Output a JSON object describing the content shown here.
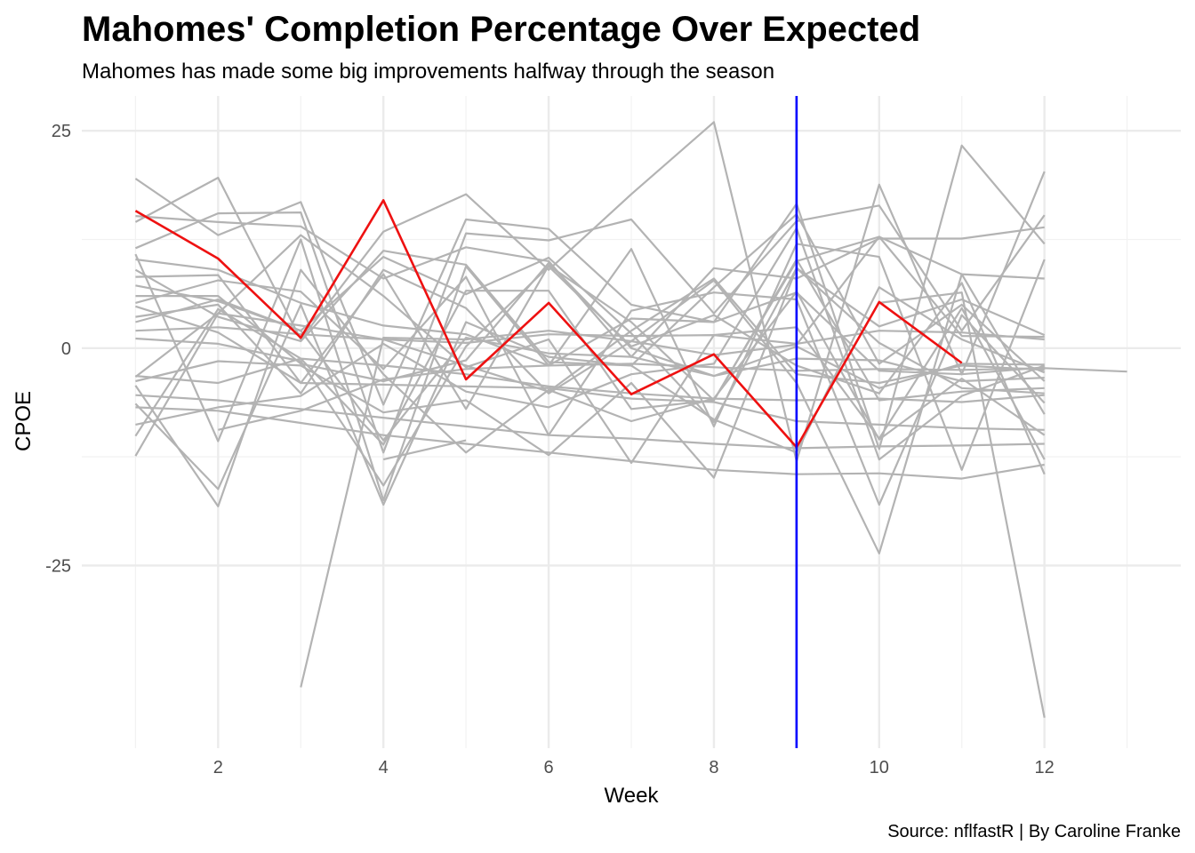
{
  "chart_data": {
    "type": "line",
    "title": "Mahomes' Completion Percentage Over Expected",
    "subtitle": "Mahomes has made some big improvements halfway through the season",
    "xlabel": "Week",
    "ylabel": "CPOE",
    "caption": "Source: nflfastR | By Caroline Franke",
    "xlim": [
      0.35,
      13.65
    ],
    "ylim": [
      -46,
      29
    ],
    "x_ticks": [
      2,
      4,
      6,
      8,
      10,
      12
    ],
    "x_tick_labels": [
      "2",
      "4",
      "6",
      "8",
      "10",
      "12"
    ],
    "y_ticks": [
      -25,
      0,
      25
    ],
    "y_tick_labels": [
      "-25",
      "0",
      "25"
    ],
    "grid": true,
    "colors": {
      "background_series": "#b3b3b3",
      "highlight": "#ee1111",
      "reference_line": "#0000ff",
      "grid": "#ebebeb"
    },
    "reference_line": {
      "x": 9
    },
    "highlight": {
      "x": [
        1,
        2,
        3,
        4,
        5,
        6,
        7,
        8,
        9,
        10,
        11
      ],
      "values": [
        15.8,
        10.3,
        1.2,
        17.0,
        -3.6,
        5.2,
        -5.3,
        -0.7,
        -11.4,
        5.3,
        -1.7
      ]
    },
    "series": [
      {
        "x": [
          1,
          2,
          3,
          4,
          5,
          6,
          7,
          8,
          9,
          10,
          11,
          12
        ],
        "values": [
          19.5,
          13.0,
          16.8,
          -6.5,
          14.8,
          13.7,
          5.0,
          3.0,
          16.6,
          -11.6,
          23.3,
          12.0
        ]
      },
      {
        "x": [
          1,
          2,
          3,
          4,
          5,
          6,
          7,
          8,
          9,
          10,
          11,
          12
        ],
        "values": [
          14.5,
          19.6,
          1.0,
          13.4,
          17.7,
          9.0,
          17.7,
          26.0,
          -13.0,
          18.8,
          -3.0,
          20.3
        ]
      },
      {
        "x": [
          1,
          2,
          3,
          4,
          5,
          6,
          7,
          8,
          9,
          10,
          11,
          12
        ],
        "values": [
          11.5,
          15.5,
          15.6,
          -12.0,
          13.2,
          12.4,
          14.8,
          4.0,
          14.6,
          16.4,
          2.0,
          15.3
        ]
      },
      {
        "x": [
          1,
          2,
          3,
          4,
          5,
          6,
          7,
          8,
          9,
          10,
          11,
          12
        ],
        "values": [
          15.2,
          14.5,
          14.0,
          8.0,
          11.6,
          10.0,
          -1.0,
          9.2,
          8.0,
          12.6,
          12.6,
          13.9
        ]
      },
      {
        "x": [
          1,
          2,
          3,
          4,
          5,
          6,
          7,
          8,
          9,
          10,
          11,
          12
        ],
        "values": [
          10.8,
          -10.7,
          12.5,
          -17.5,
          9.4,
          -2.0,
          11.4,
          -9.0,
          12.0,
          10.5,
          -14.0,
          10.2
        ]
      },
      {
        "x": [
          1,
          2,
          3,
          4,
          5,
          6,
          7,
          8,
          9,
          10,
          11,
          12
        ],
        "values": [
          8.2,
          8.4,
          -4.0,
          8.5,
          -7.0,
          9.5,
          3.0,
          -6.0,
          10.0,
          12.8,
          8.5,
          8.0
        ]
      },
      {
        "x": [
          1,
          2,
          3,
          4,
          5,
          6,
          7,
          8,
          9,
          10,
          11,
          12
        ],
        "values": [
          7.2,
          5.4,
          2.0,
          10.5,
          6.2,
          10.4,
          1.7,
          -8.5,
          9.2,
          2.5,
          5.6,
          1.5
        ]
      },
      {
        "x": [
          1,
          2,
          3,
          4,
          5,
          6,
          7,
          8,
          9,
          10,
          11,
          12
        ],
        "values": [
          5.2,
          7.8,
          6.5,
          -2.4,
          8.2,
          -10.0,
          4.3,
          6.4,
          5.6,
          -18.0,
          3.8,
          -6.3
        ]
      },
      {
        "x": [
          1,
          2,
          3,
          4,
          5,
          6,
          7,
          8,
          9,
          10,
          11,
          12
        ],
        "values": [
          3.6,
          5.0,
          -5.2,
          9.0,
          4.6,
          -5.2,
          0.8,
          7.8,
          -4.0,
          -23.6,
          8.5,
          -7.6
        ]
      },
      {
        "x": [
          1,
          2,
          3,
          4,
          5,
          6,
          7,
          8,
          9,
          10,
          11,
          12
        ],
        "values": [
          1.1,
          0.5,
          -1.5,
          -15.8,
          0.2,
          9.4,
          0.2,
          3.8,
          -2.0,
          -5.2,
          7.5,
          -14.5
        ]
      },
      {
        "x": [
          1,
          2,
          3,
          4,
          5,
          6,
          7,
          8,
          9,
          10,
          11,
          12
        ],
        "values": [
          -3.3,
          4.0,
          13.0,
          6.0,
          -2.2,
          1.0,
          -13.2,
          1.5,
          2.4,
          -10.4,
          4.6,
          -12.8
        ]
      },
      {
        "x": [
          1,
          2,
          3,
          4,
          5,
          6,
          7,
          8,
          9,
          10,
          11,
          12
        ],
        "values": [
          -3.8,
          -1.5,
          -2.0,
          -7.4,
          -6.0,
          -12.3,
          -4.0,
          -14.9,
          9.2,
          0.6,
          -4.6,
          -5.2
        ]
      },
      {
        "x": [
          1,
          2,
          3,
          4,
          5,
          6,
          7,
          8,
          9,
          10,
          11,
          12
        ],
        "values": [
          -4.3,
          -18.2,
          9.0,
          -3.0,
          -12.0,
          -4.8,
          -8.4,
          -5.8,
          6.5,
          -10.5,
          -3.5,
          -10.0
        ]
      },
      {
        "x": [
          1,
          2,
          3,
          4,
          5,
          6,
          7,
          8,
          9,
          10,
          11,
          12
        ],
        "values": [
          -6.4,
          -16.2,
          5.0,
          -18.0,
          3.0,
          -1.0,
          -2.0,
          7.0,
          15.4,
          -1.8,
          5.0,
          -3.8
        ]
      },
      {
        "x": [
          1,
          2,
          3,
          4,
          5,
          6,
          7,
          8,
          9,
          10,
          11,
          12
        ],
        "values": [
          -8.8,
          -6.8,
          -5.5,
          0.5,
          -5.0,
          -6.8,
          -3.0,
          -1.8,
          13.8,
          -12.8,
          -5.5,
          -2.0
        ]
      },
      {
        "x": [
          1,
          2,
          3,
          4,
          5,
          6,
          7,
          8,
          9,
          10,
          11,
          12
        ],
        "values": [
          -10.1,
          4.5,
          -1.2,
          -11.1,
          6.6,
          6.6,
          -7.0,
          -6.0,
          10.2,
          -6.0,
          -5.0,
          -4.6
        ]
      },
      {
        "x": [
          1,
          2,
          3,
          4,
          5,
          6,
          7,
          8,
          9,
          10,
          11,
          12
        ],
        "values": [
          -12.4,
          4.0,
          2.6,
          1.0,
          -2.0,
          -5.0,
          2.0,
          8.0,
          -3.0,
          -4.0,
          -2.0,
          -2.5
        ]
      },
      {
        "x": [
          1,
          2,
          3,
          4,
          5,
          6,
          7,
          8,
          9,
          10,
          11,
          12
        ],
        "values": [
          9.0,
          3.6,
          0.8,
          11.2,
          9.6,
          -1.6,
          -2.0,
          -8.2,
          -12.0,
          7.0,
          1.0,
          -2.8
        ]
      },
      {
        "x": [
          1,
          2,
          3,
          4,
          5,
          6,
          7,
          8,
          9,
          10,
          11,
          12
        ],
        "values": [
          6.0,
          6.0,
          -1.8,
          -3.8,
          -1.4,
          9.8,
          0.0,
          -3.2,
          0.2,
          -4.6,
          -1.8,
          -1.9
        ]
      },
      {
        "x": [
          1,
          2,
          3,
          4,
          5,
          6,
          7,
          8,
          9,
          10,
          11,
          12
        ],
        "values": [
          4.8,
          1.8,
          -4.0,
          -4.2,
          -4.4,
          -4.6,
          -5.8,
          -6.2,
          -8.4,
          -8.8,
          -9.2,
          -9.4
        ]
      },
      {
        "x": [
          1,
          2,
          3,
          4,
          5,
          6,
          7,
          8,
          9,
          10,
          11,
          12
        ],
        "values": [
          -5.4,
          -6.0,
          -7.0,
          -8.0,
          -9.0,
          -10.0,
          -10.4,
          -11.0,
          -11.5,
          -11.3,
          -11.2,
          -11.0
        ]
      },
      {
        "x": [
          1,
          2,
          3,
          4,
          5,
          6,
          7,
          8,
          9,
          10,
          11,
          12
        ],
        "values": [
          -6.8,
          -7.2,
          -8.6,
          -10.0,
          -11.0,
          -12.0,
          -13.0,
          -14.0,
          -14.5,
          -14.4,
          -15.0,
          -13.4
        ]
      },
      {
        "x": [
          1,
          2,
          3,
          4,
          5,
          6,
          7,
          8,
          9,
          10,
          11,
          12
        ],
        "values": [
          2.0,
          2.4,
          1.6,
          1.0,
          0.6,
          1.6,
          1.4,
          1.5,
          0.5,
          2.0,
          1.8,
          1.0
        ]
      },
      {
        "x": [
          1,
          2,
          3,
          4,
          5,
          6,
          7,
          8,
          9,
          10,
          11,
          12
        ],
        "values": [
          -3.2,
          -4.0,
          -1.2,
          -2.0,
          -3.0,
          -4.4,
          -5.2,
          -5.8,
          -6.0,
          -5.8,
          -6.2,
          -5.4
        ]
      },
      {
        "x": [
          2,
          3,
          4,
          5,
          6,
          7,
          8,
          9,
          10,
          11,
          12,
          13
        ],
        "values": [
          -9.4,
          -7.2,
          -3.6,
          -2.4,
          -2.0,
          -1.8,
          -2.2,
          -2.6,
          -2.4,
          -2.5,
          -2.3,
          -2.7
        ]
      },
      {
        "x": [
          3,
          4,
          5,
          6,
          7,
          8,
          9,
          10,
          11,
          12
        ],
        "values": [
          -39.0,
          1.2,
          1.0,
          2.0,
          0.8,
          -0.8,
          0.4,
          12.8,
          1.4,
          1.3
        ]
      },
      {
        "x": [
          4,
          5
        ],
        "values": [
          -12.8,
          -10.6
        ]
      },
      {
        "x": [
          10,
          11,
          12
        ],
        "values": [
          5.2,
          6.4,
          -42.5
        ]
      },
      {
        "x": [
          1,
          2,
          3,
          4,
          5,
          6,
          7,
          8,
          9,
          10,
          11,
          12
        ],
        "values": [
          3.0,
          5.6,
          2.0,
          -10.6,
          1.2,
          -0.6,
          -1.0,
          -3.2,
          -1.2,
          -1.4,
          -3.8,
          -3.4
        ]
      },
      {
        "x": [
          1,
          2,
          3,
          4,
          5,
          6,
          7,
          8,
          9,
          10,
          11,
          12
        ],
        "values": [
          10.2,
          9.0,
          5.2,
          2.6,
          1.6,
          -2.0,
          3.4,
          3.0,
          6.4,
          -2.6,
          -3.0,
          -2.2
        ]
      }
    ]
  }
}
